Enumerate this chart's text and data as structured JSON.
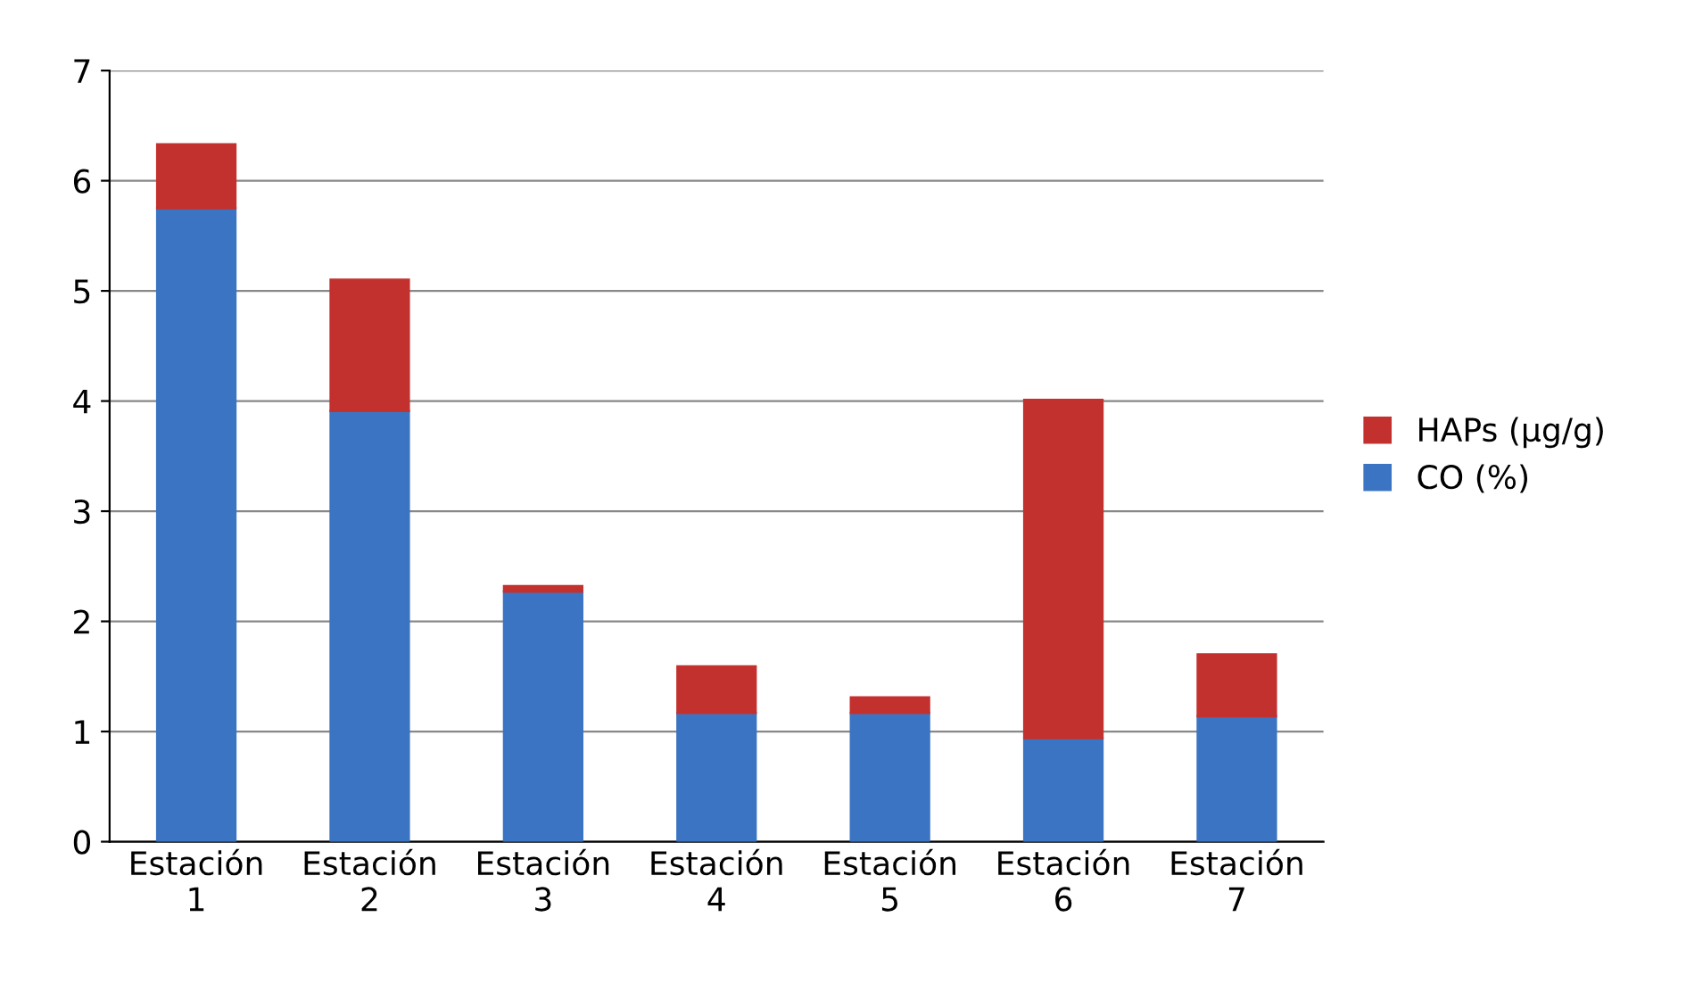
{
  "chart_data": {
    "type": "bar",
    "stacked": true,
    "categories": [
      "Estación\n1",
      "Estación\n2",
      "Estación\n3",
      "Estación\n4",
      "Estación\n5",
      "Estación\n6",
      "Estación\n7"
    ],
    "series": [
      {
        "name": "CO (%)",
        "color": "#3b74c2",
        "values": [
          5.75,
          3.91,
          2.27,
          1.17,
          1.17,
          0.94,
          1.14
        ]
      },
      {
        "name": "HAPs (µg/g)",
        "color": "#c3312f",
        "values": [
          0.58,
          1.19,
          0.05,
          0.42,
          0.14,
          3.07,
          0.56
        ]
      }
    ],
    "ylim": [
      0,
      7
    ],
    "yticks": [
      0,
      1,
      2,
      3,
      4,
      5,
      6,
      7
    ],
    "grid": "y",
    "legend": "right"
  }
}
